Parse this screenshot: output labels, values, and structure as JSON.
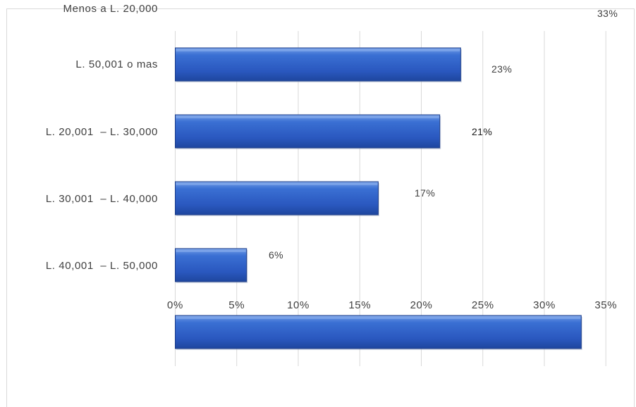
{
  "chart_data": {
    "type": "bar",
    "orientation": "horizontal",
    "categories": [
      "Menos a L. 20,000",
      "L. 50,001 o mas",
      "L. 20,001  – L. 30,000",
      "L. 30,001  – L. 40,000",
      "L. 40,001  – L. 50,000"
    ],
    "values": [
      33,
      23,
      21,
      17,
      6
    ],
    "bar_lengths_percent": [
      33,
      23.2,
      21.5,
      16.5,
      5.8
    ],
    "data_labels": [
      "33%",
      "23%",
      "21%",
      "17%",
      "6%"
    ],
    "xticks": [
      "0%",
      "5%",
      "10%",
      "15%",
      "20%",
      "25%",
      "30%",
      "35%"
    ],
    "xlim": [
      0,
      35
    ],
    "grid": true,
    "bar_color": "#2f63c7",
    "bar_highlight": "#5b8be0",
    "bar_edge": "#1f3f8a",
    "title": "",
    "xlabel": "",
    "ylabel": ""
  }
}
